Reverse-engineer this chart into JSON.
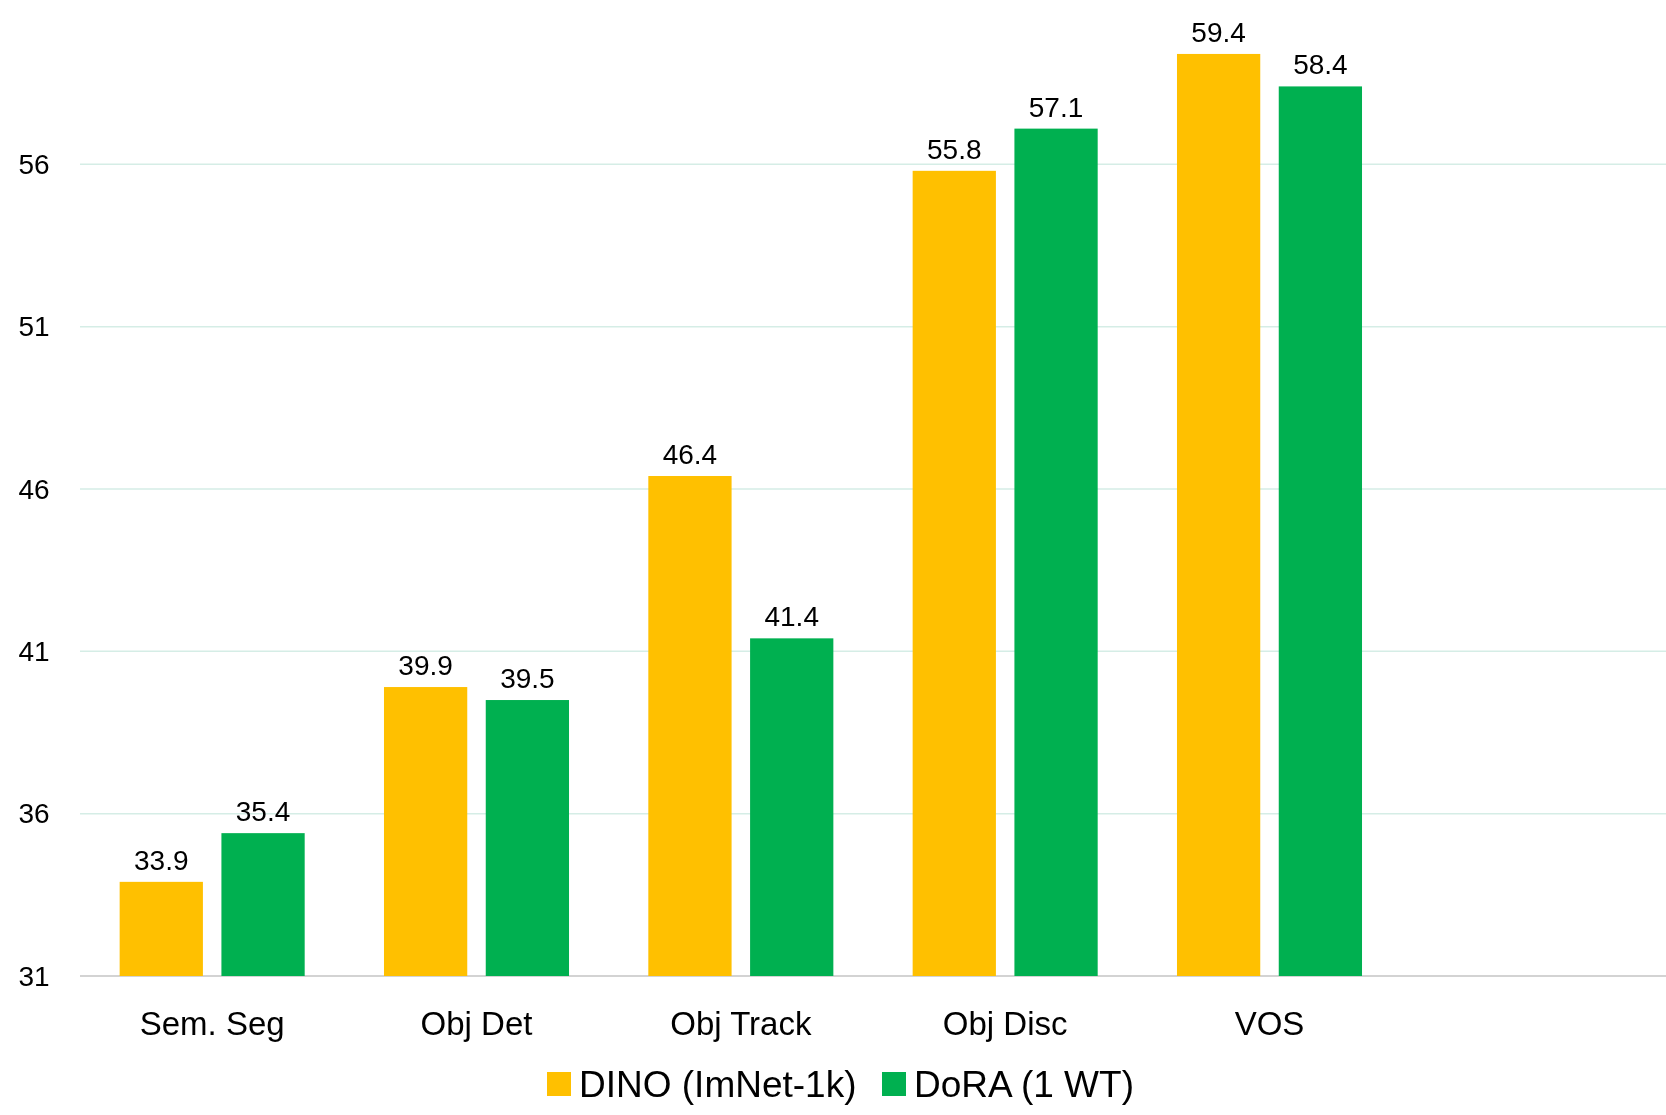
{
  "chart_data": {
    "type": "bar",
    "categories": [
      "Sem. Seg",
      "Obj Det",
      "Obj Track",
      "Obj Disc",
      "VOS",
      null
    ],
    "series": [
      {
        "name": "DINO (ImNet-1k)",
        "color": "#ffc000",
        "values": [
          33.9,
          39.9,
          46.4,
          55.8,
          59.4,
          null
        ]
      },
      {
        "name": "DoRA (1 WT)",
        "color": "#00b050",
        "values": [
          35.4,
          39.5,
          41.4,
          57.1,
          58.4,
          null
        ]
      }
    ],
    "ylim": [
      31,
      61
    ],
    "yticks": [
      31,
      36,
      41,
      46,
      51,
      56
    ],
    "grid": "y",
    "legend": "bottom",
    "data_labels": true
  }
}
